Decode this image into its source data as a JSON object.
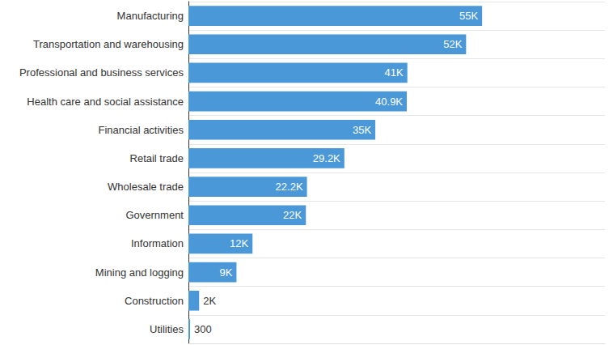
{
  "chart_data": {
    "type": "bar",
    "orientation": "horizontal",
    "categories": [
      "Manufacturing",
      "Transportation and warehousing",
      "Professional and business services",
      "Health care and social assistance",
      "Financial activities",
      "Retail trade",
      "Wholesale trade",
      "Government",
      "Information",
      "Mining and logging",
      "Construction",
      "Utilities"
    ],
    "values": [
      55000,
      52000,
      41000,
      40900,
      35000,
      29200,
      22200,
      22000,
      12000,
      9000,
      2000,
      300
    ],
    "value_labels": [
      "55K",
      "52K",
      "41K",
      "40.9K",
      "35K",
      "29.2K",
      "22.2K",
      "22K",
      "12K",
      "9K",
      "2K",
      "300"
    ],
    "color": "#4a98d8",
    "xlim": [
      0,
      78000
    ],
    "grid": true,
    "data_labels": true,
    "tick_labels": "y"
  }
}
